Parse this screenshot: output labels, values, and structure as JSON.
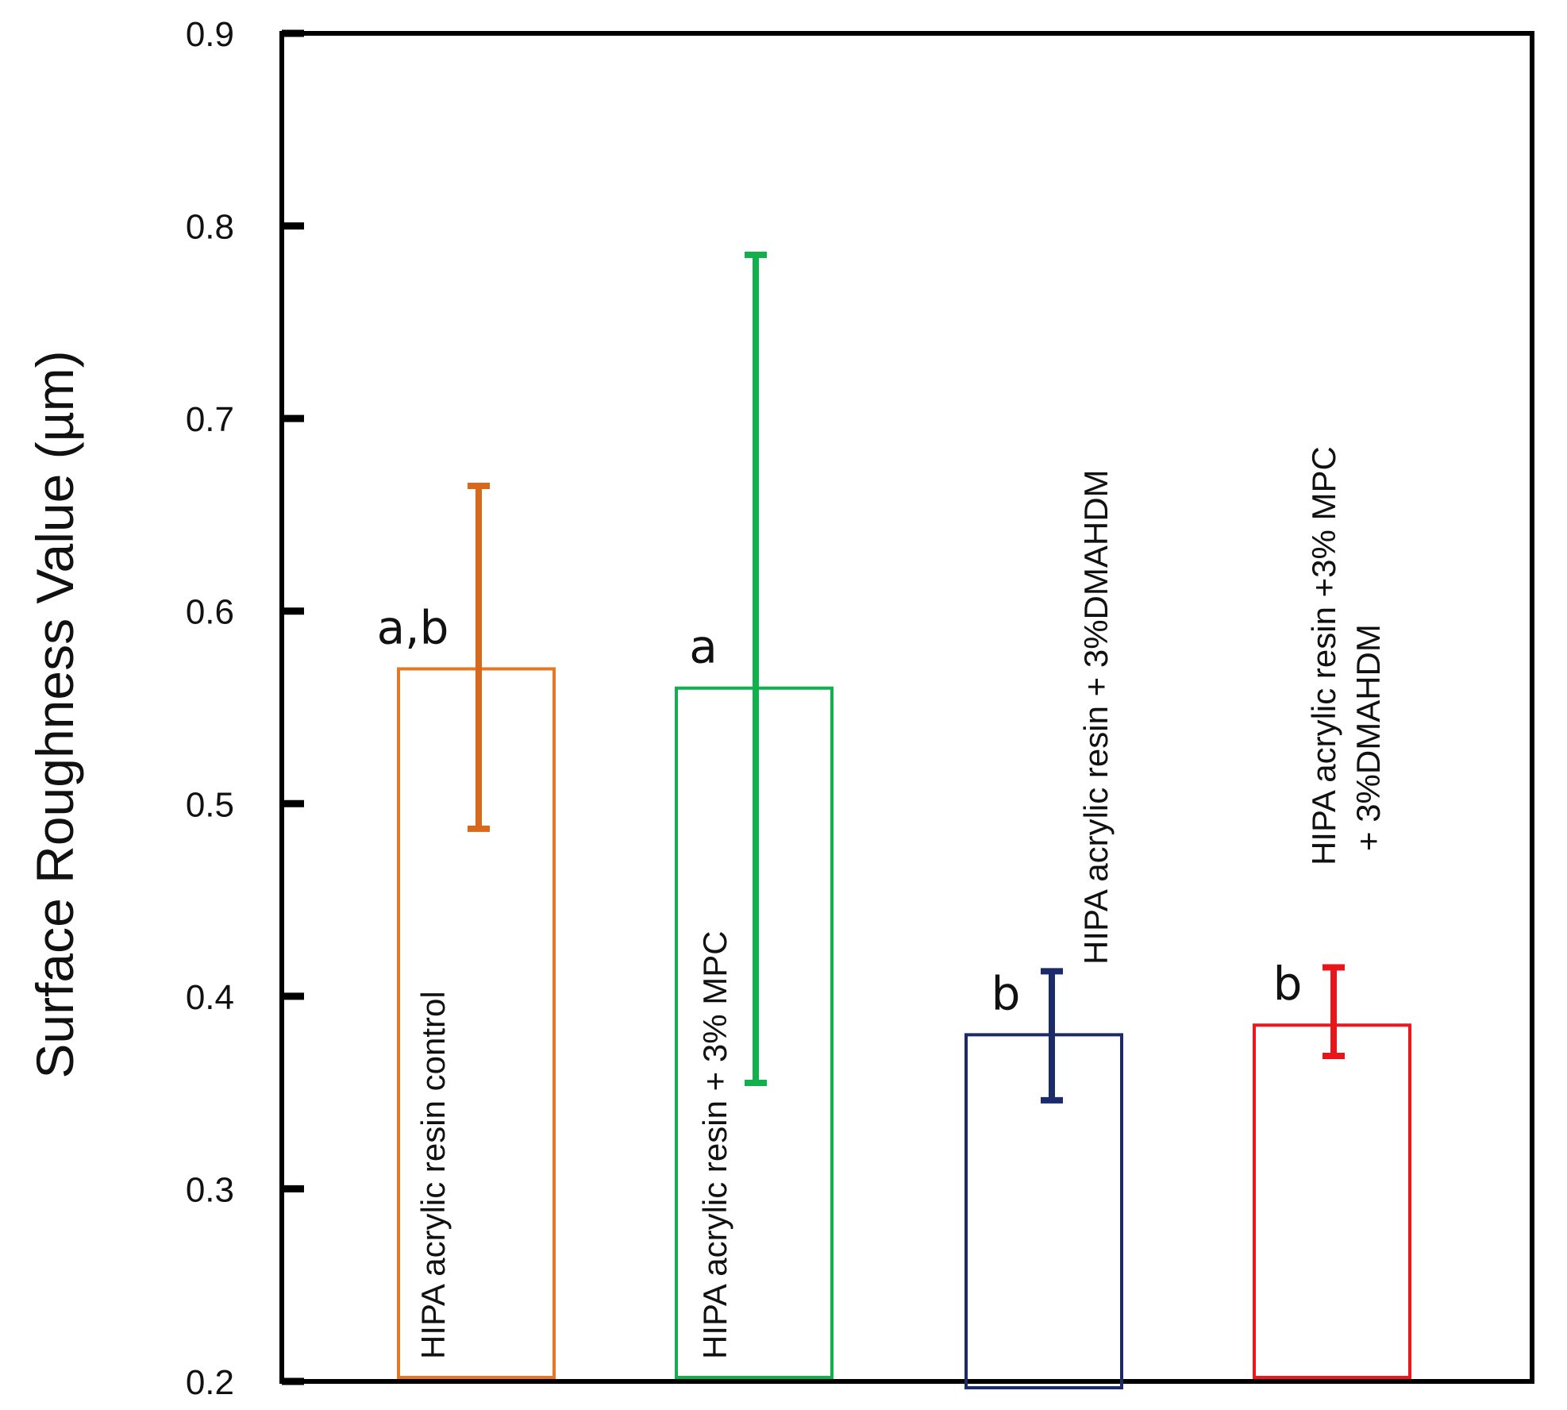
{
  "chart_data": {
    "type": "bar",
    "title": "",
    "xlabel": "",
    "ylabel": "Surface Roughness Value (µm)",
    "ylim": [
      0.2,
      0.9
    ],
    "yticks": [
      "0.2",
      "0.3",
      "0.4",
      "0.5",
      "0.6",
      "0.7",
      "0.8",
      "0.9"
    ],
    "grid": false,
    "categories": [
      [
        "HIPA acrylic resin control"
      ],
      [
        "HIPA acrylic resin + 3% MPC"
      ],
      [
        "HIPA acrylic resin + 3%DMAHDM"
      ],
      [
        "HIPA acrylic resin +3% MPC",
        "+ 3%DMAHDM"
      ]
    ],
    "values": [
      0.57,
      0.56,
      0.38,
      0.385
    ],
    "error_low": [
      0.487,
      0.355,
      0.346,
      0.369
    ],
    "error_high": [
      0.665,
      0.785,
      0.413,
      0.415
    ],
    "significance": [
      "a,b",
      "a",
      "b",
      "b"
    ],
    "colors": [
      "#e87722",
      "#12b04c",
      "#1a2a6b",
      "#f0161c"
    ],
    "error_colors": [
      "#d9691a",
      "#12b04c",
      "#1a2a6b",
      "#e8151b"
    ]
  }
}
